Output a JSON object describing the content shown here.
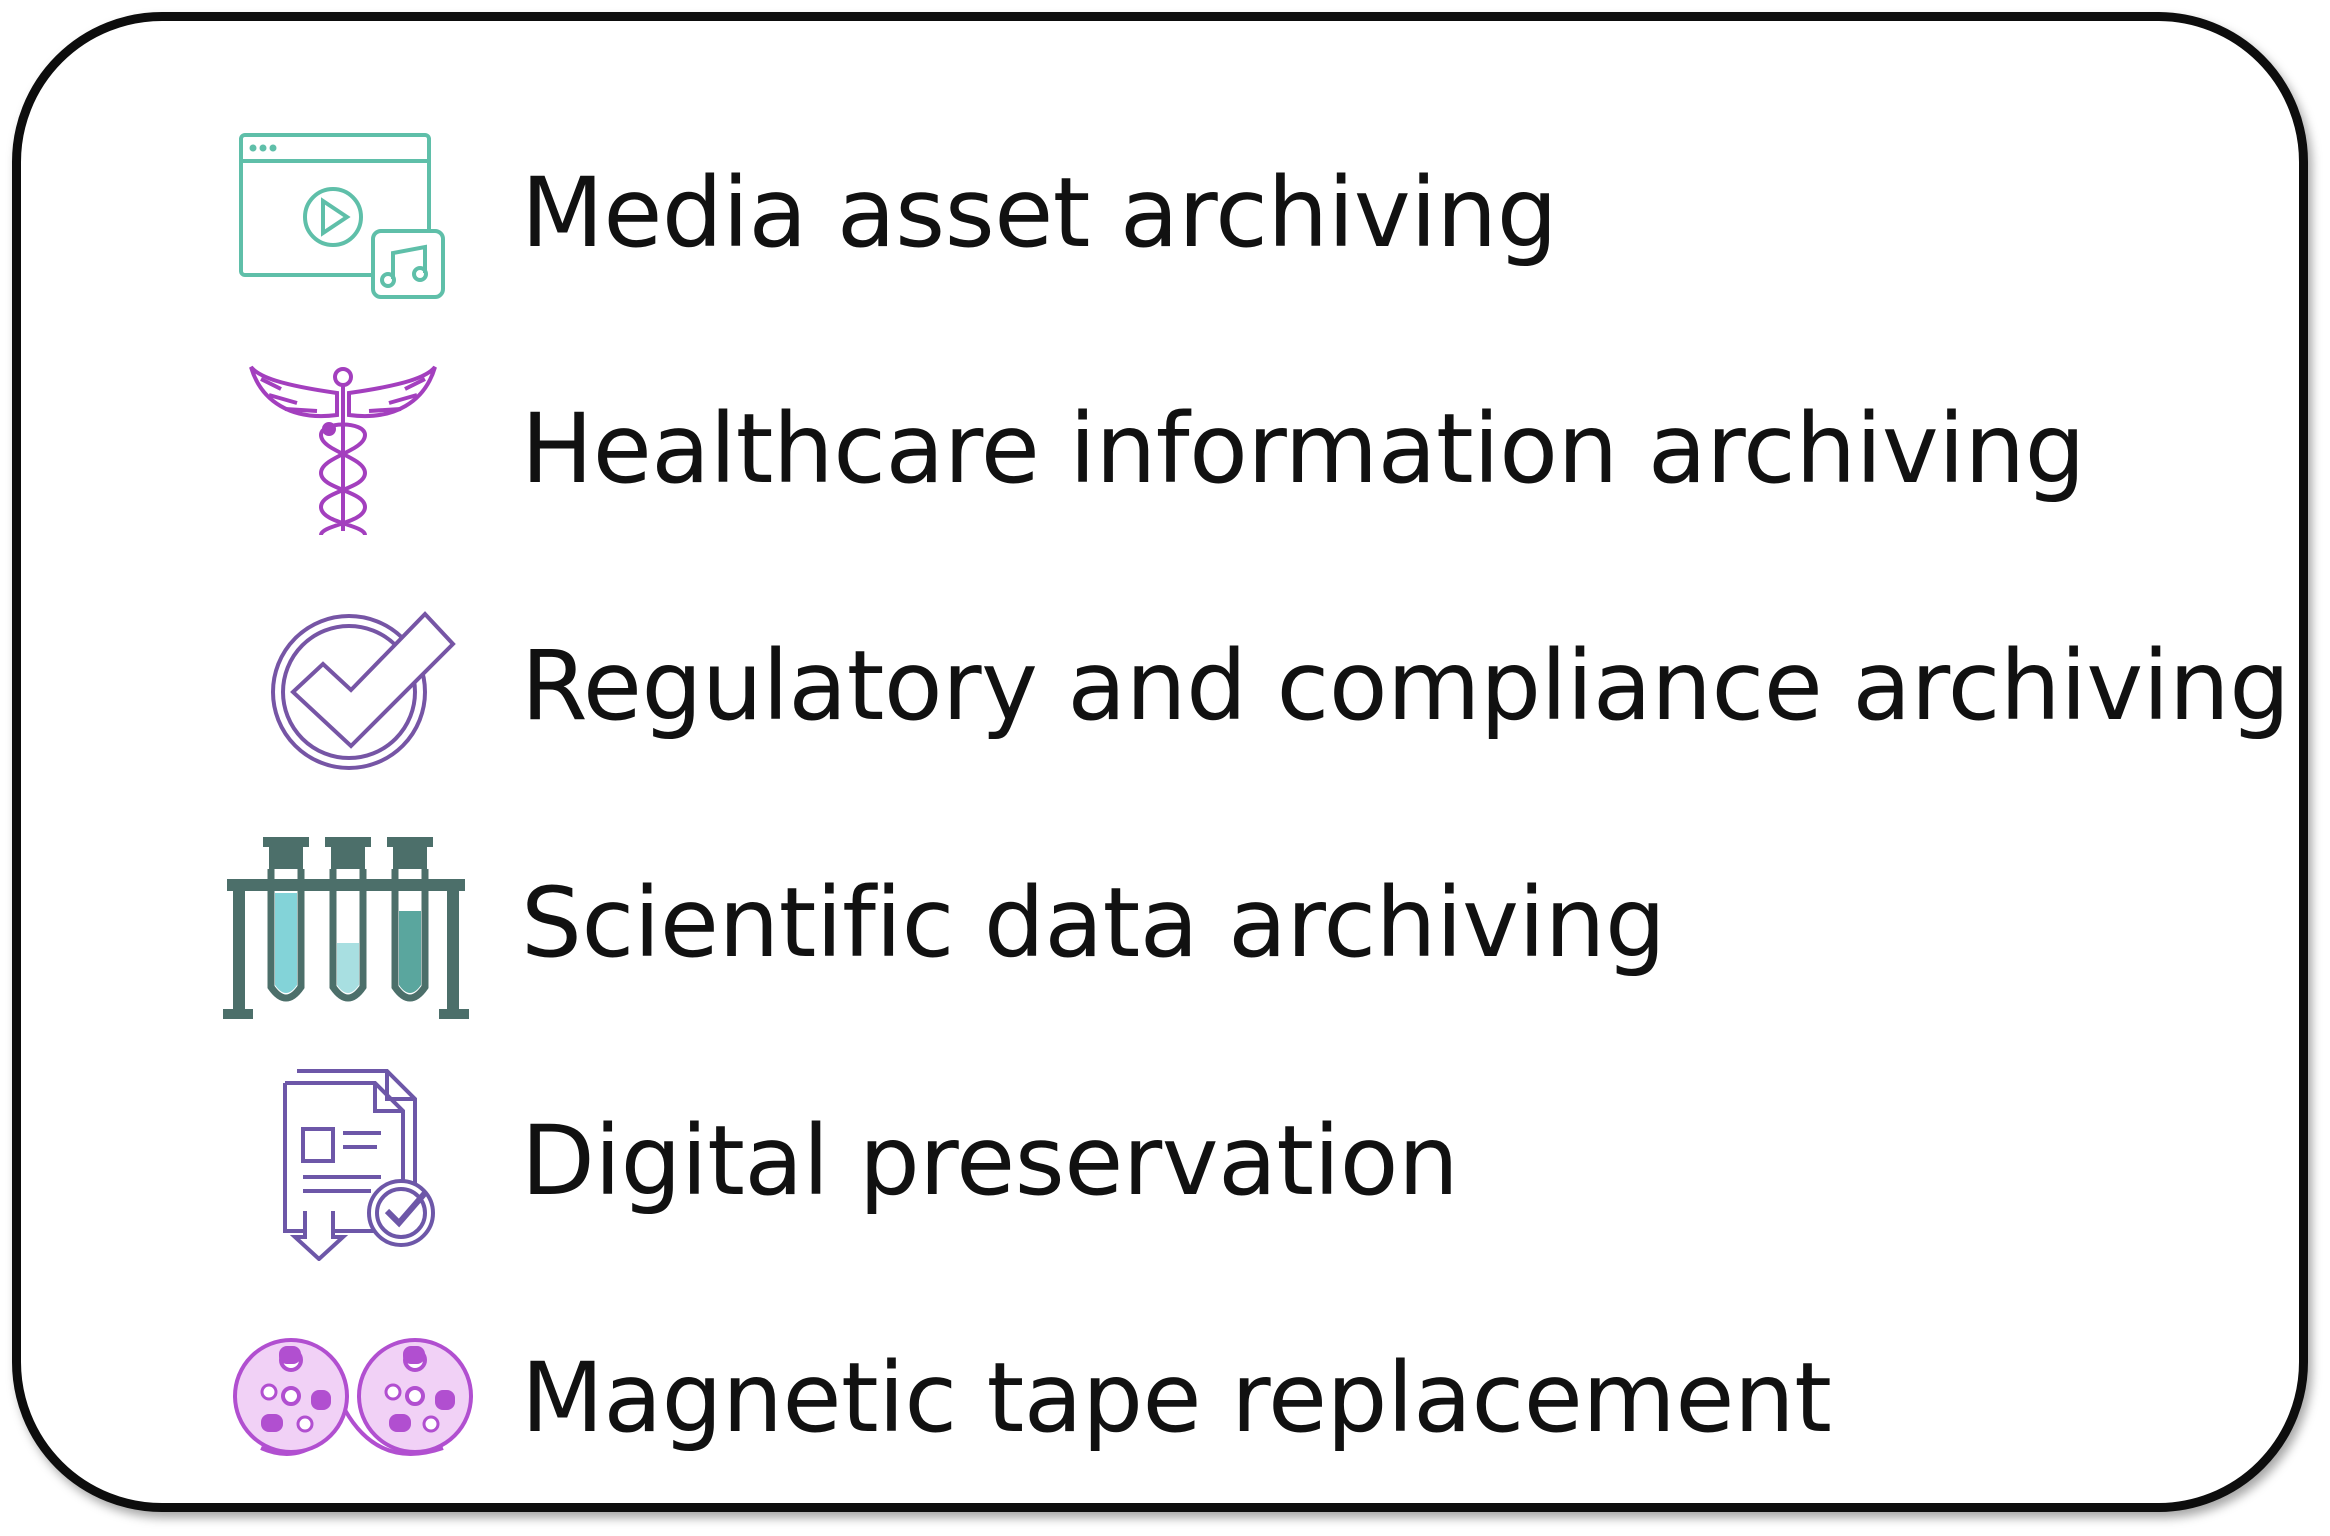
{
  "items": [
    {
      "label": "Media asset archiving",
      "icon": "media-player-icon",
      "color": "#5fbfa9"
    },
    {
      "label": "Healthcare information archiving",
      "icon": "caduceus-icon",
      "color": "#a33fbe"
    },
    {
      "label": "Regulatory and compliance archiving",
      "icon": "circle-check-icon",
      "color": "#7655a5"
    },
    {
      "label": "Scientific data archiving",
      "icon": "test-tubes-icon",
      "color": "#4c6f6a"
    },
    {
      "label": "Digital preservation",
      "icon": "document-check-icon",
      "color": "#6d57a8"
    },
    {
      "label": "Magnetic tape replacement",
      "icon": "tape-reels-icon",
      "color": "#b14fd0"
    }
  ]
}
